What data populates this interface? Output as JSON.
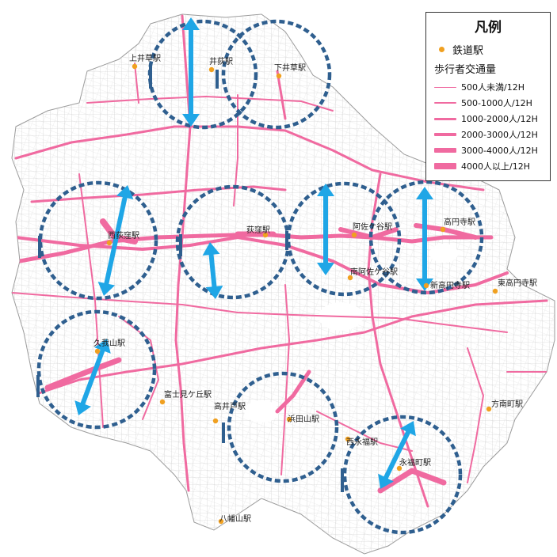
{
  "legend": {
    "title": "凡例",
    "station_label": "鉄道駅",
    "traffic_label": "歩行者交通量",
    "items": [
      {
        "label": "500人未満/12H",
        "width": 1
      },
      {
        "label": "500-1000人/12H",
        "width": 2
      },
      {
        "label": "1000-2000人/12H",
        "width": 3
      },
      {
        "label": "2000-3000人/12H",
        "width": 4
      },
      {
        "label": "3000-4000人/12H",
        "width": 6
      },
      {
        "label": "4000人以上/12H",
        "width": 8
      }
    ]
  },
  "colors": {
    "road": "#f06aa0",
    "minor_road": "#bdbdbd",
    "circle": "#2f5f8f",
    "arrow": "#1fa6e6",
    "station": "#f0a020"
  },
  "stations": [
    {
      "name": "上井草駅"
    },
    {
      "name": "井荻駅"
    },
    {
      "name": "下井草駅"
    },
    {
      "name": "西荻窪駅"
    },
    {
      "name": "荻窪駅"
    },
    {
      "name": "阿佐ケ谷駅"
    },
    {
      "name": "高円寺駅"
    },
    {
      "name": "南阿佐ケ谷駅"
    },
    {
      "name": "新高円寺駅"
    },
    {
      "name": "東高円寺駅"
    },
    {
      "name": "久我山駅"
    },
    {
      "name": "富士見ケ丘駅"
    },
    {
      "name": "高井戸駅"
    },
    {
      "name": "浜田山駅"
    },
    {
      "name": "方南町駅"
    },
    {
      "name": "西永福駅"
    },
    {
      "name": "永福町駅"
    },
    {
      "name": "八幡山駅"
    }
  ]
}
